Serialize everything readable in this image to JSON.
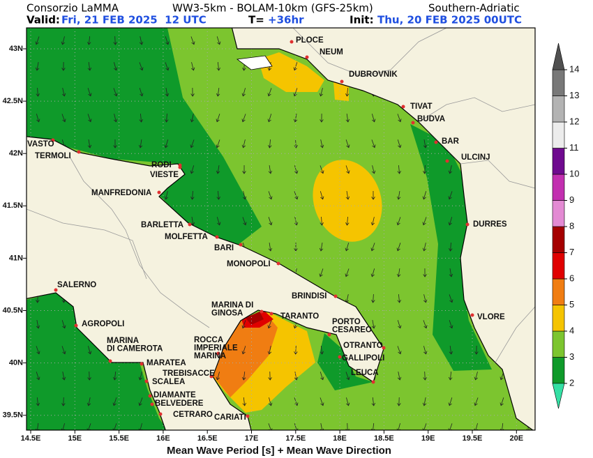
{
  "header": {
    "org": "Consorzio LaMMA",
    "model": "WW3-5km - BOLAM-10km (GFS-25km)",
    "region": "Southern-Adriatic",
    "valid_label": "Valid:",
    "valid": "Fri, 21 FEB 2025  12 UTC",
    "lead_label": "T=",
    "lead": "+36hr",
    "init_label": "Init:",
    "init": "Thu, 20 FEB 2025 00UTC"
  },
  "x_ticks": [
    "14.5E",
    "15E",
    "15.5E",
    "16E",
    "16.5E",
    "17E",
    "17.5E",
    "18E",
    "18.5E",
    "19E",
    "19.5E",
    "20E"
  ],
  "y_ticks": [
    "43N",
    "42.5N",
    "42N",
    "41.5N",
    "41N",
    "40.5N",
    "40N",
    "39.5N"
  ],
  "places": [
    {
      "lines": [
        "PLOCE"
      ]
    },
    {
      "lines": [
        "NEUM"
      ]
    },
    {
      "lines": [
        "DUBROVNIK"
      ]
    },
    {
      "lines": [
        "TIVAT"
      ]
    },
    {
      "lines": [
        "BUDVA"
      ]
    },
    {
      "lines": [
        "BAR"
      ]
    },
    {
      "lines": [
        "ULCINJ"
      ]
    },
    {
      "lines": [
        "DURRES"
      ]
    },
    {
      "lines": [
        "VLORE"
      ]
    },
    {
      "lines": [
        "VASTO"
      ]
    },
    {
      "lines": [
        "TERMOLI"
      ]
    },
    {
      "lines": [
        "RODI"
      ]
    },
    {
      "lines": [
        "VIESTE"
      ]
    },
    {
      "lines": [
        "MANFREDONIA"
      ]
    },
    {
      "lines": [
        "BARLETTA"
      ]
    },
    {
      "lines": [
        "MOLFETTA"
      ]
    },
    {
      "lines": [
        "BARI"
      ]
    },
    {
      "lines": [
        "MONOPOLI"
      ]
    },
    {
      "lines": [
        "BRINDISI"
      ]
    },
    {
      "lines": [
        "TARANTO"
      ]
    },
    {
      "lines": [
        "MARINA DI",
        "GINOSA"
      ]
    },
    {
      "lines": [
        "PORTO",
        "CESAREO"
      ]
    },
    {
      "lines": [
        "OTRANTO"
      ]
    },
    {
      "lines": [
        "GALLIPOLI"
      ]
    },
    {
      "lines": [
        "LEUCA"
      ]
    },
    {
      "lines": [
        "SALERNO"
      ]
    },
    {
      "lines": [
        "AGROPOLI"
      ]
    },
    {
      "lines": [
        "MARINA",
        "DI CAMEROTA"
      ]
    },
    {
      "lines": [
        "ROCCA",
        "IMPERIALE",
        "MARINA"
      ]
    },
    {
      "lines": [
        "MARATEA"
      ]
    },
    {
      "lines": [
        "TREBISACCE"
      ]
    },
    {
      "lines": [
        "SCALEA"
      ]
    },
    {
      "lines": [
        "DIAMANTE"
      ]
    },
    {
      "lines": [
        "BELVEDERE"
      ]
    },
    {
      "lines": [
        "CETRARO"
      ]
    },
    {
      "lines": [
        "CARIATI"
      ]
    }
  ],
  "colorbar": {
    "levels": [
      2,
      3,
      4,
      5,
      6,
      7,
      8,
      9,
      10,
      11,
      12,
      13,
      14
    ],
    "colors": [
      "#0f9a2a",
      "#7cc52f",
      "#f5c400",
      "#f07d12",
      "#e00000",
      "#a50000",
      "#e38ad3",
      "#c22fb0",
      "#6f0a8f",
      "#ececec",
      "#b3b3b3",
      "#787878"
    ],
    "under_color": "#34e0a4",
    "over_color": "#505050"
  },
  "footer": "Mean Wave Period [s] + Mean Wave Direction"
}
